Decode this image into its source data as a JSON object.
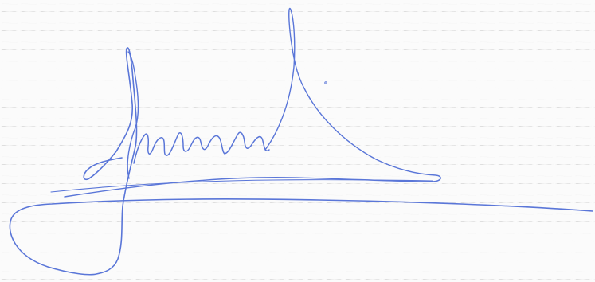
{
  "image": {
    "background_color": "#fbfbfb",
    "ink_color": "#5a76d8"
  },
  "signature": {
    "text": "Juanu"
  }
}
